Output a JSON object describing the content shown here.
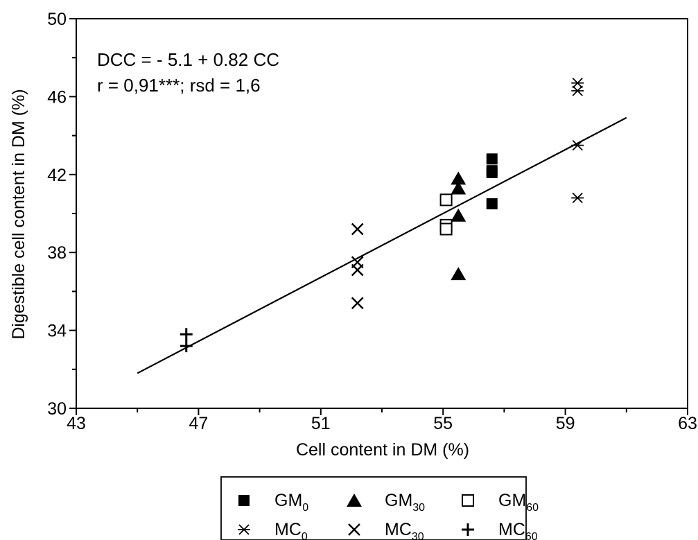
{
  "chart_data": {
    "type": "scatter",
    "xlabel": "Cell content in DM (%)",
    "ylabel": "Digestible cell content in DM (%)",
    "xlim": [
      43,
      63
    ],
    "ylim": [
      30,
      50
    ],
    "xticks": [
      43,
      47,
      51,
      55,
      59,
      63
    ],
    "yticks": [
      30,
      34,
      38,
      42,
      46,
      50
    ],
    "grid": false,
    "legend_position": "bottom-center",
    "annotation": {
      "line1": "DCC = - 5.1 + 0.82 CC",
      "line2": "r = 0,91***; rsd = 1,6"
    },
    "regression": {
      "intercept": -5.1,
      "slope": 0.82,
      "x_range": [
        45.0,
        61.0
      ]
    },
    "series": [
      {
        "name_base": "GM",
        "name_sub": "0",
        "marker": "filled-square",
        "points": [
          [
            56.6,
            42.8
          ],
          [
            56.6,
            42.2
          ],
          [
            56.6,
            42.1
          ],
          [
            56.6,
            40.5
          ]
        ]
      },
      {
        "name_base": "GM",
        "name_sub": "30",
        "marker": "filled-triangle",
        "points": [
          [
            55.5,
            41.8
          ],
          [
            55.5,
            41.3
          ],
          [
            55.5,
            39.9
          ],
          [
            55.5,
            36.9
          ]
        ]
      },
      {
        "name_base": "GM",
        "name_sub": "60",
        "marker": "open-square",
        "points": [
          [
            55.1,
            40.7
          ],
          [
            55.1,
            39.4
          ],
          [
            55.1,
            39.2
          ]
        ]
      },
      {
        "name_base": "MC",
        "name_sub": "0",
        "marker": "asterisk",
        "points": [
          [
            59.4,
            46.7
          ],
          [
            59.4,
            46.3
          ],
          [
            59.4,
            43.5
          ],
          [
            59.4,
            40.8
          ]
        ]
      },
      {
        "name_base": "MC",
        "name_sub": "30",
        "marker": "x",
        "points": [
          [
            52.2,
            39.2
          ],
          [
            52.2,
            37.5
          ],
          [
            52.2,
            37.1
          ],
          [
            52.2,
            35.4
          ]
        ]
      },
      {
        "name_base": "MC",
        "name_sub": "60",
        "marker": "plus",
        "points": [
          [
            46.6,
            33.8
          ],
          [
            46.6,
            33.2
          ]
        ]
      }
    ]
  }
}
